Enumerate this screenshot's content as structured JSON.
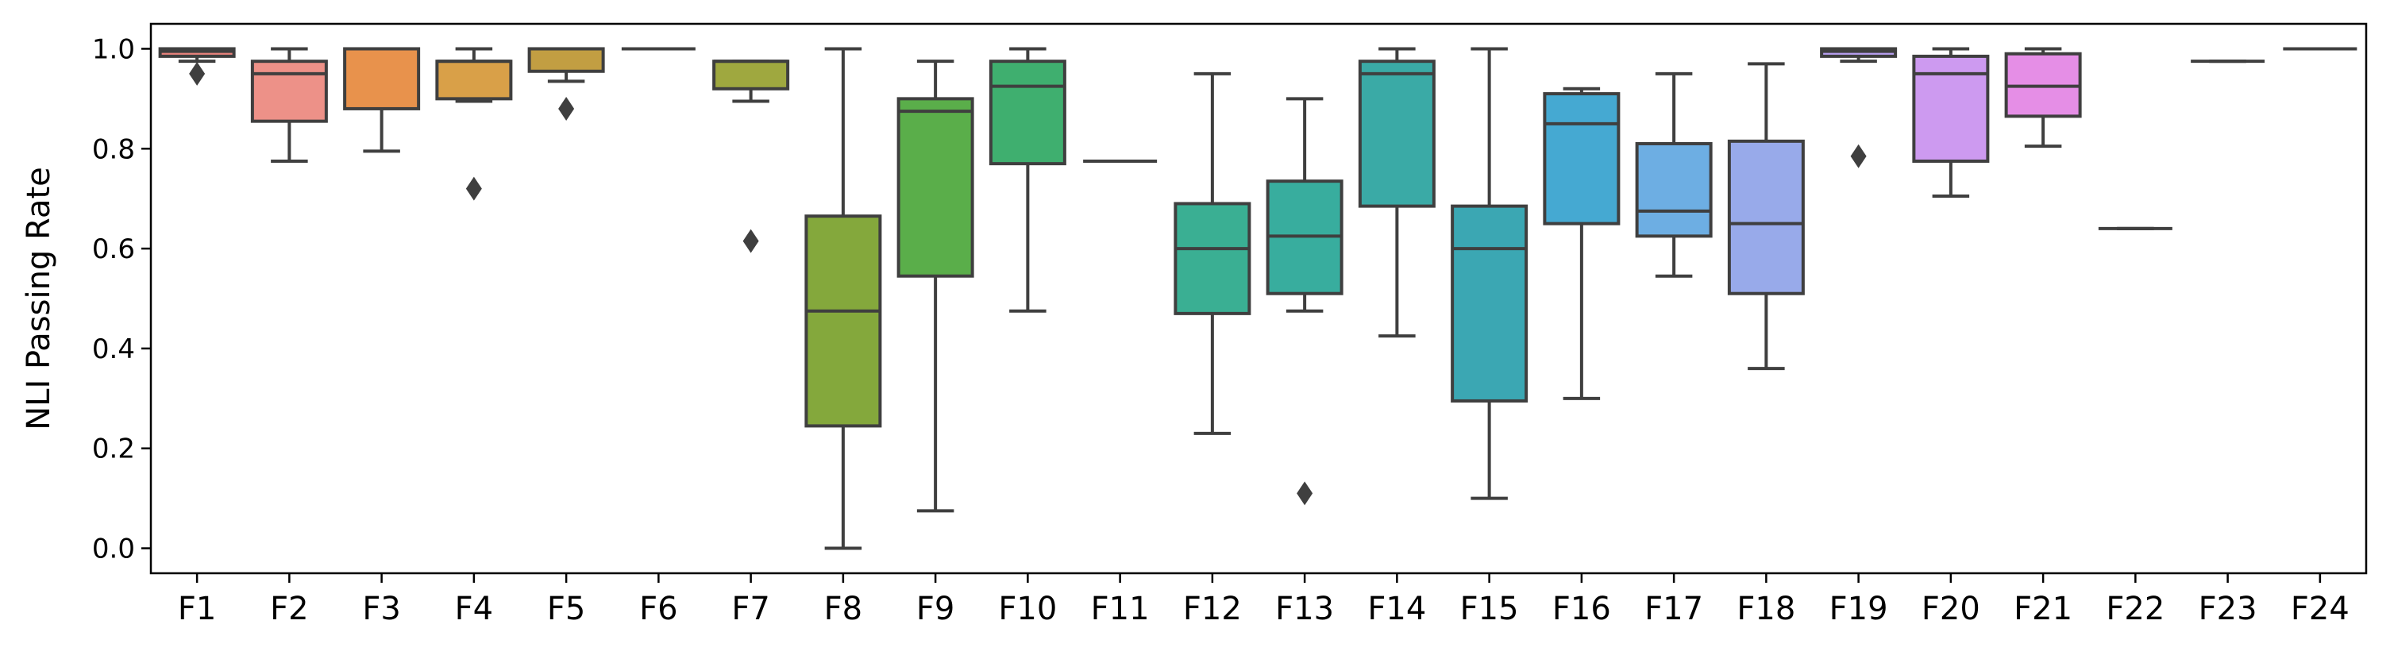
{
  "chart_data": {
    "type": "box",
    "title": "",
    "xlabel": "",
    "ylabel": "NLI Passing Rate",
    "ylim": [
      -0.05,
      1.05
    ],
    "yticks": [
      0.0,
      0.2,
      0.4,
      0.6,
      0.8,
      1.0
    ],
    "ytick_labels": [
      "0.0",
      "0.2",
      "0.4",
      "0.6",
      "0.8",
      "1.0"
    ],
    "grid": false,
    "legend": "none",
    "categories": [
      "F1",
      "F2",
      "F3",
      "F4",
      "F5",
      "F6",
      "F7",
      "F8",
      "F9",
      "F10",
      "F11",
      "F12",
      "F13",
      "F14",
      "F15",
      "F16",
      "F17",
      "F18",
      "F19",
      "F20",
      "F21",
      "F22",
      "F23",
      "F24"
    ],
    "boxes": [
      {
        "label": "F1",
        "whisker_low": 0.975,
        "q1": 0.985,
        "median": 0.995,
        "q3": 1.0,
        "whisker_high": 1.0,
        "outliers": [
          0.95
        ],
        "color": "#e8837d"
      },
      {
        "label": "F2",
        "whisker_low": 0.775,
        "q1": 0.855,
        "median": 0.95,
        "q3": 0.975,
        "whisker_high": 1.0,
        "outliers": [],
        "color": "#ed9188"
      },
      {
        "label": "F3",
        "whisker_low": 0.795,
        "q1": 0.88,
        "median": 1.0,
        "q3": 1.0,
        "whisker_high": 1.0,
        "outliers": [],
        "color": "#e8924c"
      },
      {
        "label": "F4",
        "whisker_low": 0.895,
        "q1": 0.9,
        "median": 0.975,
        "q3": 0.975,
        "whisker_high": 1.0,
        "outliers": [
          0.72
        ],
        "color": "#d9a048"
      },
      {
        "label": "F5",
        "whisker_low": 0.935,
        "q1": 0.955,
        "median": 1.0,
        "q3": 1.0,
        "whisker_high": 1.0,
        "outliers": [
          0.88
        ],
        "color": "#c29e42"
      },
      {
        "label": "F6",
        "whisker_low": 1.0,
        "q1": 1.0,
        "median": 1.0,
        "q3": 1.0,
        "whisker_high": 1.0,
        "outliers": [],
        "color": "#b0a53c"
      },
      {
        "label": "F7",
        "whisker_low": 0.895,
        "q1": 0.92,
        "median": 0.975,
        "q3": 0.975,
        "whisker_high": 0.975,
        "outliers": [
          0.615
        ],
        "color": "#9fa83f"
      },
      {
        "label": "F8",
        "whisker_low": 0.0,
        "q1": 0.245,
        "median": 0.475,
        "q3": 0.665,
        "whisker_high": 1.0,
        "outliers": [],
        "color": "#84a83c"
      },
      {
        "label": "F9",
        "whisker_low": 0.075,
        "q1": 0.545,
        "median": 0.875,
        "q3": 0.9,
        "whisker_high": 0.975,
        "outliers": [],
        "color": "#5aae4a"
      },
      {
        "label": "F10",
        "whisker_low": 0.475,
        "q1": 0.77,
        "median": 0.925,
        "q3": 0.975,
        "whisker_high": 1.0,
        "outliers": [],
        "color": "#3faf6f"
      },
      {
        "label": "F11",
        "whisker_low": 0.775,
        "q1": 0.775,
        "median": 0.775,
        "q3": 0.775,
        "whisker_high": 0.775,
        "outliers": [],
        "color": "#3bb083"
      },
      {
        "label": "F12",
        "whisker_low": 0.23,
        "q1": 0.47,
        "median": 0.6,
        "q3": 0.69,
        "whisker_high": 0.95,
        "outliers": [],
        "color": "#3aaf93"
      },
      {
        "label": "F13",
        "whisker_low": 0.475,
        "q1": 0.51,
        "median": 0.625,
        "q3": 0.735,
        "whisker_high": 0.9,
        "outliers": [
          0.11
        ],
        "color": "#38ad9e"
      },
      {
        "label": "F14",
        "whisker_low": 0.425,
        "q1": 0.685,
        "median": 0.95,
        "q3": 0.975,
        "whisker_high": 1.0,
        "outliers": [],
        "color": "#3aaaa6"
      },
      {
        "label": "F15",
        "whisker_low": 0.1,
        "q1": 0.295,
        "median": 0.6,
        "q3": 0.685,
        "whisker_high": 1.0,
        "outliers": [],
        "color": "#3ba7b3"
      },
      {
        "label": "F16",
        "whisker_low": 0.3,
        "q1": 0.65,
        "median": 0.85,
        "q3": 0.91,
        "whisker_high": 0.92,
        "outliers": [],
        "color": "#45a9d2"
      },
      {
        "label": "F17",
        "whisker_low": 0.545,
        "q1": 0.625,
        "median": 0.675,
        "q3": 0.81,
        "whisker_high": 0.95,
        "outliers": [],
        "color": "#6daee3"
      },
      {
        "label": "F18",
        "whisker_low": 0.36,
        "q1": 0.51,
        "median": 0.65,
        "q3": 0.815,
        "whisker_high": 0.97,
        "outliers": [],
        "color": "#98aaea"
      },
      {
        "label": "F19",
        "whisker_low": 0.975,
        "q1": 0.985,
        "median": 0.995,
        "q3": 1.0,
        "whisker_high": 1.0,
        "outliers": [
          0.785
        ],
        "color": "#b79ff0"
      },
      {
        "label": "F20",
        "whisker_low": 0.705,
        "q1": 0.775,
        "median": 0.95,
        "q3": 0.985,
        "whisker_high": 1.0,
        "outliers": [],
        "color": "#cd9af0"
      },
      {
        "label": "F21",
        "whisker_low": 0.805,
        "q1": 0.865,
        "median": 0.925,
        "q3": 0.99,
        "whisker_high": 1.0,
        "outliers": [],
        "color": "#e58ee6"
      },
      {
        "label": "F22",
        "whisker_low": 0.64,
        "q1": 0.64,
        "median": 0.64,
        "q3": 0.64,
        "whisker_high": 0.64,
        "outliers": [],
        "color": "#e98fc8"
      },
      {
        "label": "F23",
        "whisker_low": 0.975,
        "q1": 0.975,
        "median": 0.975,
        "q3": 0.975,
        "whisker_high": 0.975,
        "outliers": [],
        "color": "#ec8fb3"
      },
      {
        "label": "F24",
        "whisker_low": 1.0,
        "q1": 1.0,
        "median": 1.0,
        "q3": 1.0,
        "whisker_high": 1.0,
        "outliers": [],
        "color": "#ee8c9c"
      }
    ],
    "line_color": "#3f3f3f"
  }
}
